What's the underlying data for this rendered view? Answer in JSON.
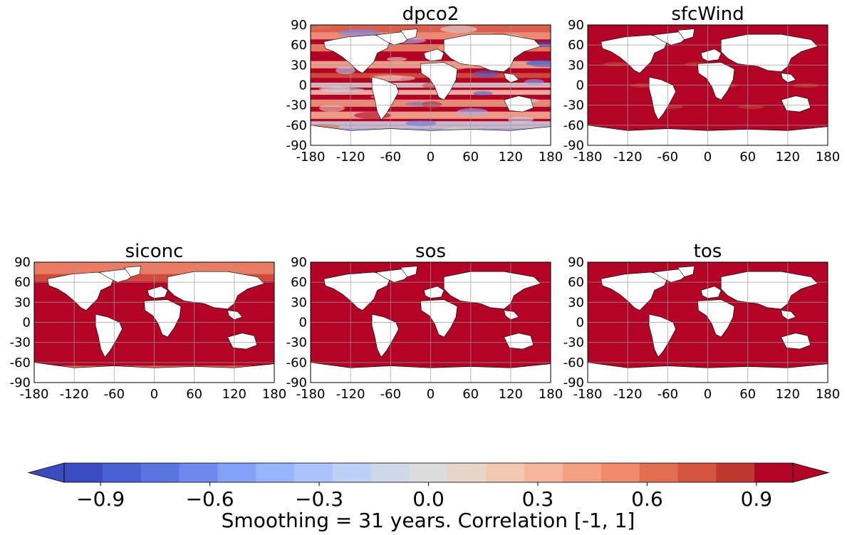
{
  "chart_data": {
    "type": "heatmap",
    "description_free": true,
    "x_ticks": [
      "-180",
      "-120",
      "-60",
      "0",
      "60",
      "120",
      "180"
    ],
    "y_ticks": [
      "90",
      "60",
      "30",
      "0",
      "-30",
      "-60",
      "-90"
    ],
    "xlim": [
      -180,
      180
    ],
    "ylim": [
      -90,
      90
    ],
    "grid": true,
    "panels": [
      {
        "title": "dpco2",
        "row": 0,
        "col": 1,
        "pattern": "mixed"
      },
      {
        "title": "sfcWind",
        "row": 0,
        "col": 2,
        "pattern": "high"
      },
      {
        "title": "siconc",
        "row": 1,
        "col": 0,
        "pattern": "polar"
      },
      {
        "title": "sos",
        "row": 1,
        "col": 1,
        "pattern": "uniform"
      },
      {
        "title": "tos",
        "row": 1,
        "col": 2,
        "pattern": "uniform"
      }
    ],
    "colorbar": {
      "range": [
        -1,
        1
      ],
      "levels": 20,
      "extend": "both",
      "ticks": [
        "−0.9",
        "−0.6",
        "−0.3",
        "0.0",
        "0.3",
        "0.6",
        "0.9"
      ],
      "tick_values": [
        -0.9,
        -0.6,
        -0.3,
        0.0,
        0.3,
        0.6,
        0.9
      ],
      "label": "Smoothing = 31 years. Correlation [-1, 1]",
      "colors": [
        "#3b4cc0",
        "#4961d2",
        "#5b75e0",
        "#6f8aef",
        "#84a1f9",
        "#97b5fe",
        "#abc3fd",
        "#bdd0f6",
        "#cdd8eb",
        "#dcdcdc",
        "#e8d5c9",
        "#f2c8b3",
        "#f6b69b",
        "#f4a182",
        "#ef8a6a",
        "#e36f53",
        "#d55440",
        "#c03730",
        "#b40426"
      ],
      "low_color": "#3b4cc0",
      "high_color": "#b40426",
      "dominant_color": "#b40426"
    }
  }
}
